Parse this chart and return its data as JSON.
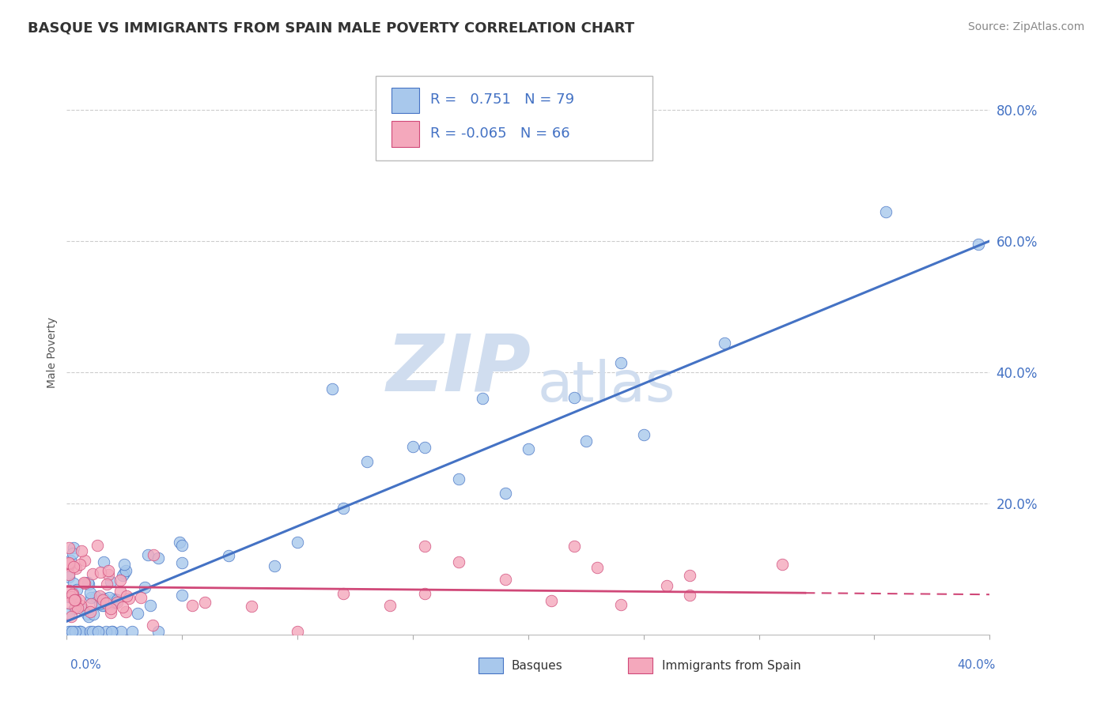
{
  "title": "BASQUE VS IMMIGRANTS FROM SPAIN MALE POVERTY CORRELATION CHART",
  "source": "Source: ZipAtlas.com",
  "xmin": 0.0,
  "xmax": 0.4,
  "ymin": 0.0,
  "ymax": 0.86,
  "ylabel_ticks": [
    0.2,
    0.4,
    0.6,
    0.8
  ],
  "ylabel_labels": [
    "20.0%",
    "40.0%",
    "60.0%",
    "80.0%"
  ],
  "color_blue": "#A8C8EC",
  "color_pink": "#F4A8BC",
  "color_blue_line": "#4472C4",
  "color_pink_line": "#D04878",
  "watermark_color": "#D0DDEF",
  "axis_label_color": "#4472C4",
  "title_color": "#333333",
  "source_color": "#888888",
  "ylabel_label": "Male Poverty",
  "bottom_label1": "Basques",
  "bottom_label2": "Immigrants from Spain",
  "legend_line1": "R =   0.751   N = 79",
  "legend_line2": "R = -0.065   N = 66"
}
